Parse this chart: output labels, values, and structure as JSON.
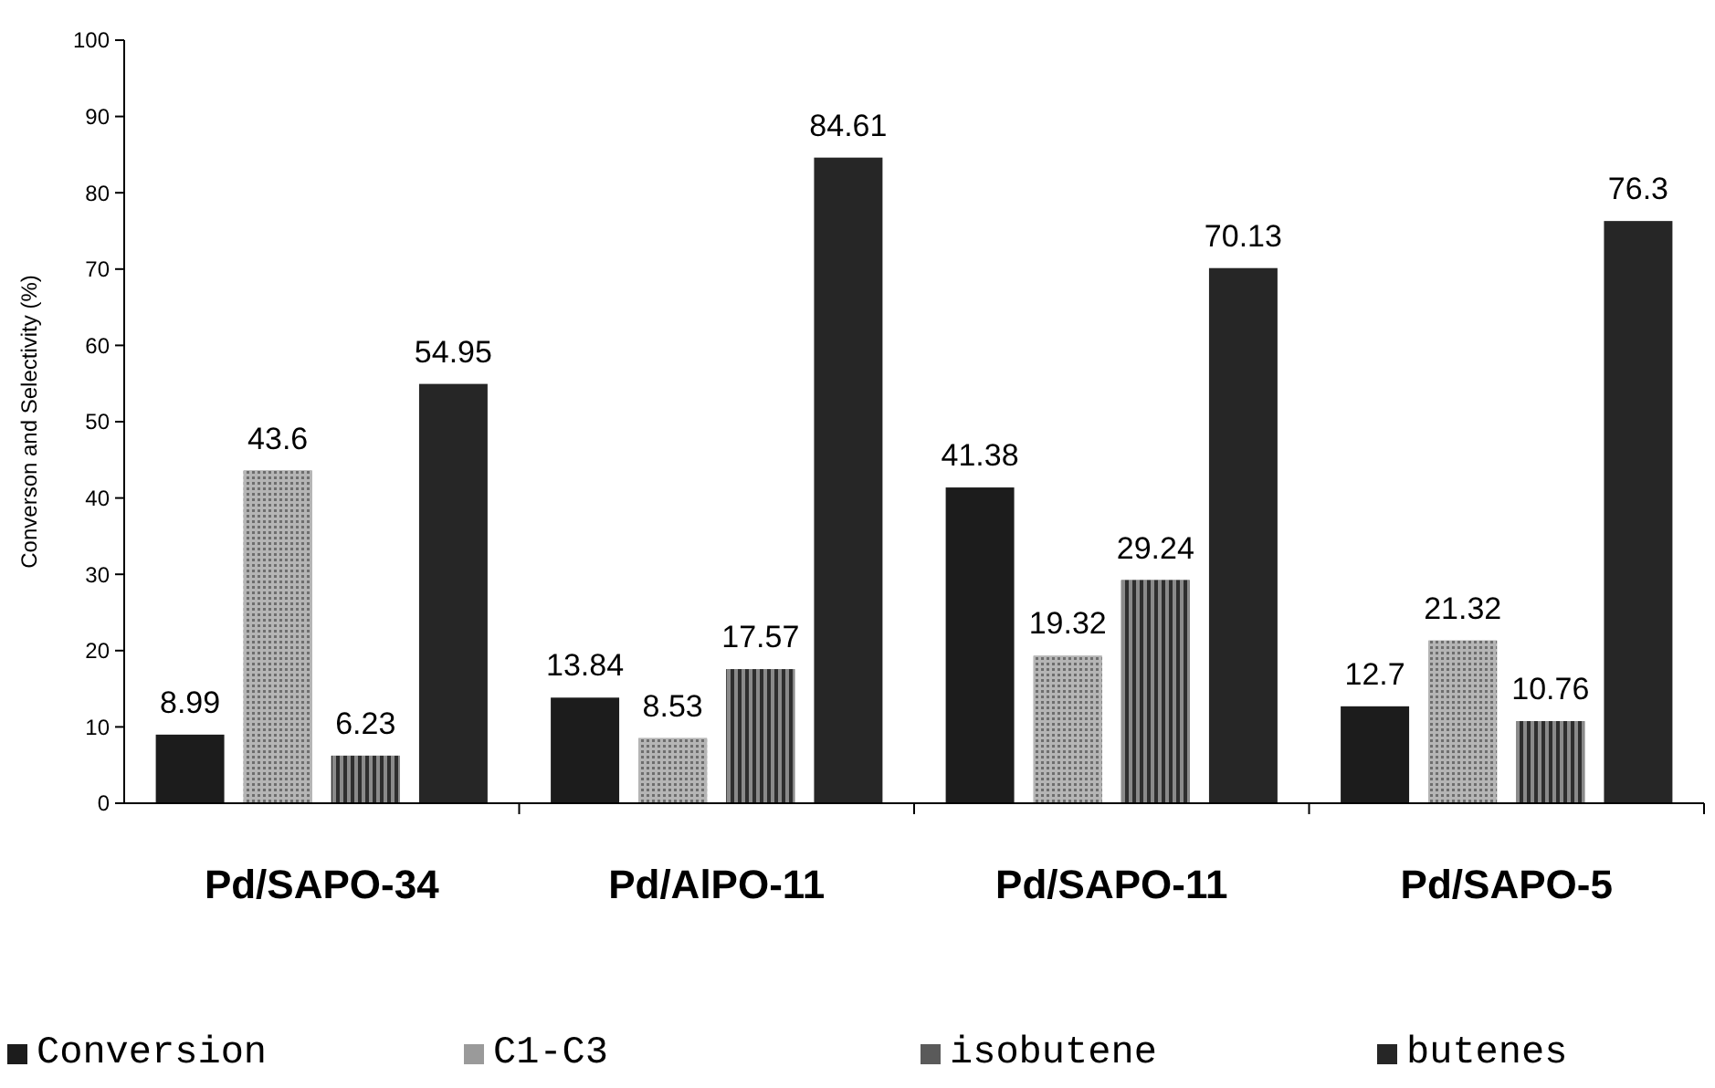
{
  "chart_data": {
    "type": "bar",
    "ylabel": "Converson and Selectivity (%)",
    "categories": [
      "Pd/SAPO-34",
      "Pd/AlPO-11",
      "Pd/SAPO-11",
      "Pd/SAPO-5"
    ],
    "series": [
      {
        "name": "Conversion",
        "color": "#1c1c1c",
        "values": [
          8.99,
          13.84,
          41.38,
          12.7
        ]
      },
      {
        "name": "C1-C3",
        "color": "#9a9a9a",
        "values": [
          43.6,
          8.53,
          19.32,
          21.32
        ]
      },
      {
        "name": "isobutene",
        "color": "#5a5a5a",
        "values": [
          6.23,
          17.57,
          29.24,
          10.76
        ]
      },
      {
        "name": "butenes",
        "color": "#262626",
        "values": [
          54.95,
          84.61,
          70.13,
          76.3
        ]
      }
    ],
    "ylim": [
      0,
      100
    ],
    "yticks": [
      0,
      10,
      20,
      30,
      40,
      50,
      60,
      70,
      80,
      90,
      100
    ],
    "data_labels": true,
    "legend": "bottom",
    "grid": false
  }
}
